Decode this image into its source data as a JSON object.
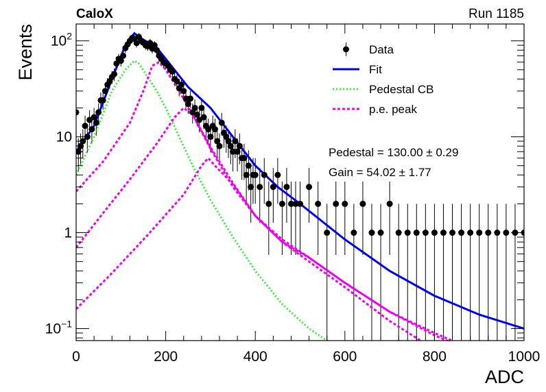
{
  "header": {
    "experiment": "CaloX",
    "run_label": "Run 1185"
  },
  "fit_results": {
    "pedestal_label": "Pedestal = 130.00",
    "pedestal_error": "0.29",
    "gain_label": "Gain = 54.02",
    "gain_error": "1.77",
    "pm_symbol": "±"
  },
  "chart_data": {
    "type": "line",
    "xlabel": "ADC",
    "ylabel": "Events",
    "xlim": [
      0,
      1000
    ],
    "ylim": [
      0.075,
      150
    ],
    "yscale": "log",
    "grid": false,
    "legend_position": "top-right",
    "x_ticks": [
      {
        "value": 0,
        "label": "0"
      },
      {
        "value": 200,
        "label": "200"
      },
      {
        "value": 400,
        "label": "400"
      },
      {
        "value": 600,
        "label": "600"
      },
      {
        "value": 800,
        "label": "800"
      },
      {
        "value": 1000,
        "label": "1000"
      }
    ],
    "y_ticks": [
      {
        "value": 0.1,
        "base": "10",
        "exp": "−1"
      },
      {
        "value": 1,
        "base": "1",
        "exp": ""
      },
      {
        "value": 10,
        "base": "10",
        "exp": ""
      },
      {
        "value": 100,
        "base": "10",
        "exp": "2"
      }
    ],
    "legend": [
      {
        "label": "Data",
        "style": "marker",
        "color": "#000000"
      },
      {
        "label": "Fit",
        "style": "solid",
        "color": "#0000ee"
      },
      {
        "label": "Pedestal CB",
        "style": "dotted",
        "color": "#33ee33"
      },
      {
        "label": "p.e. peak",
        "style": "dashed",
        "color": "#ee00ee"
      }
    ],
    "series": [
      {
        "name": "Data",
        "color": "#000000",
        "style": "marker",
        "x": [
          0,
          5,
          10,
          15,
          20,
          25,
          30,
          35,
          40,
          45,
          50,
          55,
          60,
          65,
          70,
          75,
          80,
          85,
          90,
          95,
          100,
          105,
          110,
          115,
          120,
          125,
          130,
          135,
          140,
          145,
          150,
          155,
          160,
          165,
          170,
          175,
          180,
          185,
          190,
          195,
          200,
          205,
          210,
          215,
          220,
          225,
          230,
          235,
          240,
          245,
          250,
          255,
          260,
          265,
          270,
          275,
          280,
          285,
          290,
          295,
          300,
          305,
          310,
          315,
          320,
          325,
          330,
          335,
          340,
          345,
          350,
          355,
          360,
          365,
          370,
          375,
          380,
          385,
          390,
          395,
          400,
          410,
          420,
          430,
          440,
          450,
          460,
          470,
          480,
          490,
          500,
          520,
          540,
          560,
          580,
          600,
          620,
          640,
          660,
          680,
          700,
          720,
          740,
          760,
          780,
          800,
          820,
          840,
          860,
          880,
          900,
          920,
          940,
          960,
          980,
          1000
        ],
        "y": [
          18,
          7,
          8,
          9,
          13,
          10,
          15,
          12,
          16,
          14,
          18,
          24,
          24,
          30,
          35,
          38,
          42,
          45,
          58,
          65,
          62,
          70,
          84,
          92,
          100,
          107,
          105,
          95,
          110,
          100,
          96,
          90,
          88,
          95,
          83,
          90,
          80,
          70,
          65,
          60,
          58,
          55,
          50,
          48,
          40,
          38,
          32,
          35,
          30,
          25,
          22,
          25,
          18,
          20,
          17,
          15,
          20,
          16,
          13,
          12,
          10,
          13,
          12,
          9,
          8,
          14,
          11,
          10,
          9,
          8,
          7,
          9,
          7,
          8,
          6,
          6,
          4,
          5,
          3,
          4,
          4,
          3,
          4,
          2,
          3,
          4,
          2,
          3,
          2,
          2,
          2,
          3,
          2,
          1,
          2,
          2,
          1,
          2,
          1,
          1,
          2,
          1,
          1,
          1,
          1,
          1,
          1,
          1,
          1,
          1,
          1,
          1,
          1,
          1,
          1,
          1
        ],
        "error_bars": "poisson"
      },
      {
        "name": "Fit",
        "color": "#0000ee",
        "style": "solid",
        "x": [
          0,
          40,
          80,
          110,
          130,
          150,
          180,
          200,
          250,
          300,
          350,
          400,
          450,
          500,
          600,
          700,
          800,
          900,
          1000
        ],
        "y": [
          7,
          13,
          40,
          90,
          120,
          103,
          85,
          65,
          33,
          20,
          10,
          5,
          3,
          2,
          0.85,
          0.4,
          0.22,
          0.14,
          0.1
        ]
      },
      {
        "name": "Pedestal CB",
        "color": "#33ee33",
        "style": "dotted",
        "x": [
          0,
          40,
          80,
          110,
          130,
          140,
          160,
          180,
          200,
          230,
          260,
          300,
          350,
          400,
          460,
          520,
          580
        ],
        "y": [
          4,
          10,
          30,
          50,
          62,
          58,
          42,
          30,
          20,
          10,
          5,
          2.2,
          0.9,
          0.4,
          0.18,
          0.1,
          0.065
        ]
      },
      {
        "name": "p.e. peak",
        "color": "#ee00ee",
        "style": "dashed",
        "x": [
          0,
          60,
          120,
          150,
          170,
          185,
          200,
          230,
          260,
          300,
          350,
          400,
          460,
          520,
          600,
          700,
          800,
          860
        ],
        "y": [
          2.7,
          5.5,
          14,
          30,
          55,
          60,
          50,
          30,
          17,
          7.5,
          3,
          1.5,
          0.85,
          0.55,
          0.3,
          0.15,
          0.085,
          0.065
        ]
      },
      {
        "name": "p.e. peak",
        "color": "#ee00ee",
        "style": "dashed",
        "x": [
          0,
          60,
          120,
          180,
          220,
          240,
          260,
          300,
          350,
          400,
          460,
          520,
          600,
          700,
          800,
          870
        ],
        "y": [
          0.7,
          1.6,
          3.6,
          8.5,
          16,
          20,
          17,
          7.8,
          3.3,
          1.5,
          0.8,
          0.55,
          0.3,
          0.15,
          0.09,
          0.065
        ]
      },
      {
        "name": "p.e. peak",
        "color": "#ee00ee",
        "style": "dashed",
        "x": [
          0,
          80,
          160,
          240,
          280,
          295,
          310,
          350,
          400,
          460,
          520,
          600,
          700,
          790
        ],
        "y": [
          0.16,
          0.38,
          0.95,
          2.5,
          5,
          6,
          5,
          3.2,
          1.5,
          0.8,
          0.5,
          0.27,
          0.12,
          0.065
        ]
      }
    ]
  }
}
